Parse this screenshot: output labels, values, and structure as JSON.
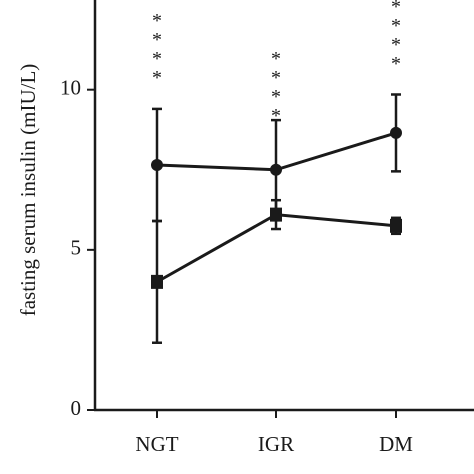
{
  "chart_data": {
    "type": "line",
    "y_label": "fasting serum insulin (mIU/L)",
    "categories": [
      "NGT",
      "IGR",
      "DM"
    ],
    "series": [
      {
        "color": "#1a1a1a",
        "marker": "circle",
        "values": [
          7.65,
          7.5,
          8.65
        ],
        "errors": [
          1.75,
          1.55,
          1.2
        ]
      },
      {
        "color": "#1a1a1a",
        "marker": "square",
        "values": [
          4.0,
          6.1,
          5.75
        ],
        "errors": [
          1.9,
          0.45,
          0.25
        ]
      }
    ],
    "annotations": [
      "****",
      "****",
      "****"
    ],
    "ylim": [
      0,
      12.8
    ],
    "yticks": [
      0,
      5,
      10
    ]
  }
}
